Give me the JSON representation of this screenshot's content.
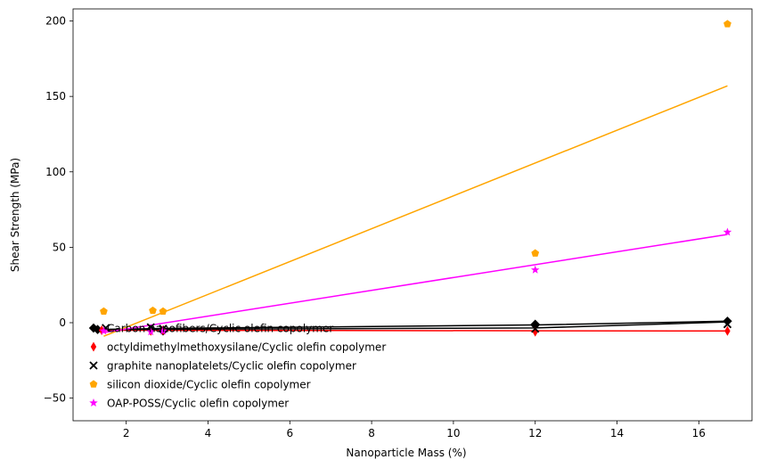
{
  "chart_data": {
    "type": "scatter",
    "title": "",
    "xlabel": "Nanoparticle Mass (%)",
    "ylabel": "Shear Strength (MPa)",
    "xlim": [
      0.7,
      17.3
    ],
    "ylim": [
      -65,
      208
    ],
    "xticks": [
      2,
      4,
      6,
      8,
      10,
      12,
      14,
      16
    ],
    "yticks": [
      -50,
      0,
      50,
      100,
      150,
      200
    ],
    "grid": false,
    "legend_position": "lower-left",
    "series": [
      {
        "name": "Carbon nanofibers/Cyclic olefin copolymer",
        "marker": "diamond",
        "color": "#000000",
        "points": [
          [
            1.3,
            -4.5
          ],
          [
            2.6,
            -4.5
          ],
          [
            2.9,
            -5.5
          ],
          [
            12.0,
            -1.0
          ],
          [
            16.7,
            1.0
          ]
        ],
        "fit": [
          [
            1.3,
            -4.5
          ],
          [
            2.6,
            -4.0
          ],
          [
            2.9,
            -3.8
          ],
          [
            12.0,
            -1.5
          ],
          [
            16.7,
            1.0
          ]
        ]
      },
      {
        "name": "octyldimethylmethoxysilane/Cyclic olefin copolymer",
        "marker": "thin_diamond",
        "color": "#ff0000",
        "points": [
          [
            1.4,
            -5.0
          ],
          [
            2.6,
            -5.5
          ],
          [
            2.9,
            -5.0
          ],
          [
            12.0,
            -6.0
          ],
          [
            16.7,
            -5.5
          ]
        ],
        "fit": [
          [
            1.4,
            -5.0
          ],
          [
            16.7,
            -5.5
          ]
        ]
      },
      {
        "name": "graphite nanoplatelets/Cyclic olefin copolymer",
        "marker": "x",
        "color": "#000000",
        "points": [
          [
            1.5,
            -3.5
          ],
          [
            2.6,
            -3.0
          ],
          [
            2.9,
            -4.0
          ],
          [
            12.0,
            -4.0
          ],
          [
            16.7,
            -1.0
          ]
        ],
        "fit": [
          [
            1.5,
            -4.5
          ],
          [
            12.0,
            -3.5
          ],
          [
            16.7,
            0.5
          ]
        ]
      },
      {
        "name": "silicon dioxide/Cyclic olefin copolymer",
        "marker": "pentagon",
        "color": "#ffa500",
        "points": [
          [
            1.45,
            7.5
          ],
          [
            2.65,
            8.0
          ],
          [
            2.9,
            7.5
          ],
          [
            12.0,
            46.0
          ],
          [
            16.7,
            198.0
          ]
        ],
        "fit": [
          [
            1.45,
            -9.0
          ],
          [
            16.7,
            157.0
          ]
        ]
      },
      {
        "name": "OAP-POSS/Cyclic olefin copolymer",
        "marker": "star",
        "color": "#ff00ff",
        "points": [
          [
            1.45,
            -5.5
          ],
          [
            2.6,
            -6.0
          ],
          [
            2.9,
            -5.5
          ],
          [
            12.0,
            35.0
          ],
          [
            16.7,
            60.0
          ]
        ],
        "fit": [
          [
            1.45,
            -6.5
          ],
          [
            16.7,
            58.5
          ]
        ]
      }
    ]
  }
}
